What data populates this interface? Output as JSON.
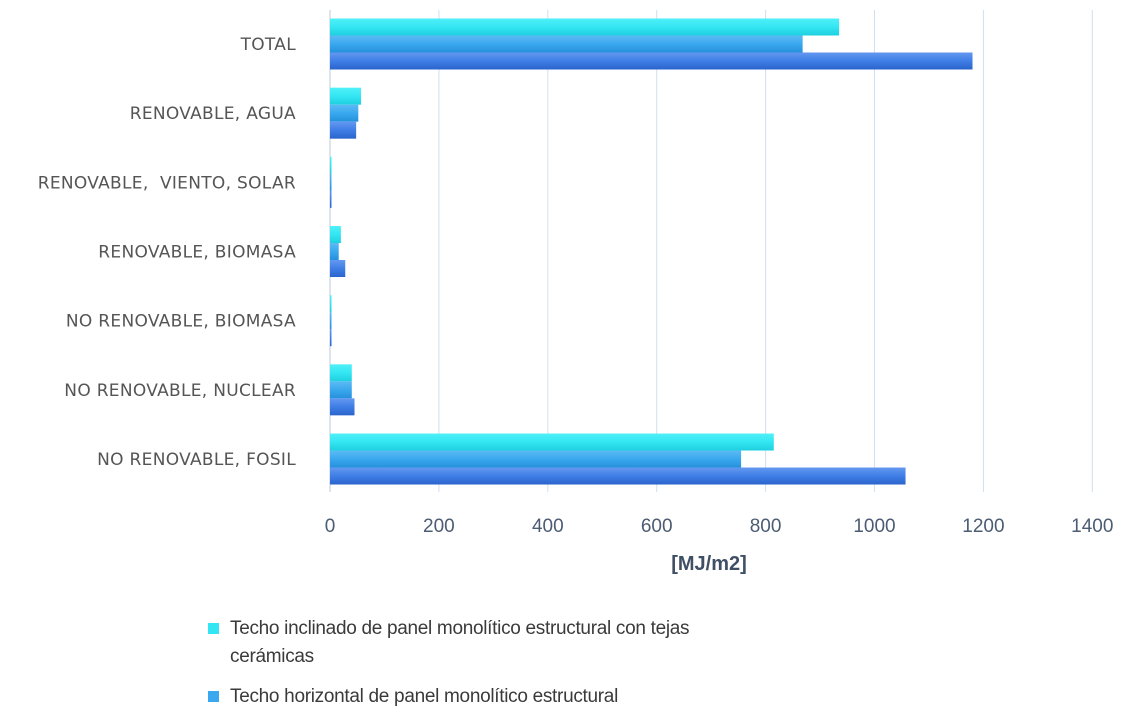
{
  "chart_data": {
    "type": "bar",
    "orientation": "horizontal",
    "categories": [
      "TOTAL",
      "RENOVABLE, AGUA",
      "RENOVABLE,  VIENTO, SOLAR",
      "RENOVABLE, BIOMASA",
      "NO RENOVABLE, BIOMASA",
      "NO RENOVABLE, NUCLEAR",
      "NO RENOVABLE, FOSIL"
    ],
    "series": [
      {
        "name_lines": [
          "Techo inclinado de panel monolítico estructural con tejas",
          "cerámicas"
        ],
        "color": "#33e6f2",
        "values": [
          935,
          57,
          2,
          20,
          2,
          40,
          815
        ]
      },
      {
        "name_lines": [
          "Techo horizontal de panel monolítico estructural"
        ],
        "color": "#3aa8ee",
        "values": [
          868,
          52,
          2,
          16,
          2,
          40,
          755
        ]
      },
      {
        "name_lines": [],
        "color": "#3f7ee6",
        "values": [
          1180,
          48,
          2,
          28,
          2,
          45,
          1057
        ]
      }
    ],
    "xlabel": "[MJ/m2]",
    "xlim": [
      0,
      1400
    ],
    "xticks": [
      "0",
      "200",
      "400",
      "600",
      "800",
      "1000",
      "1200",
      "1400"
    ],
    "grid": "vertical",
    "legend_position": "bottom"
  }
}
